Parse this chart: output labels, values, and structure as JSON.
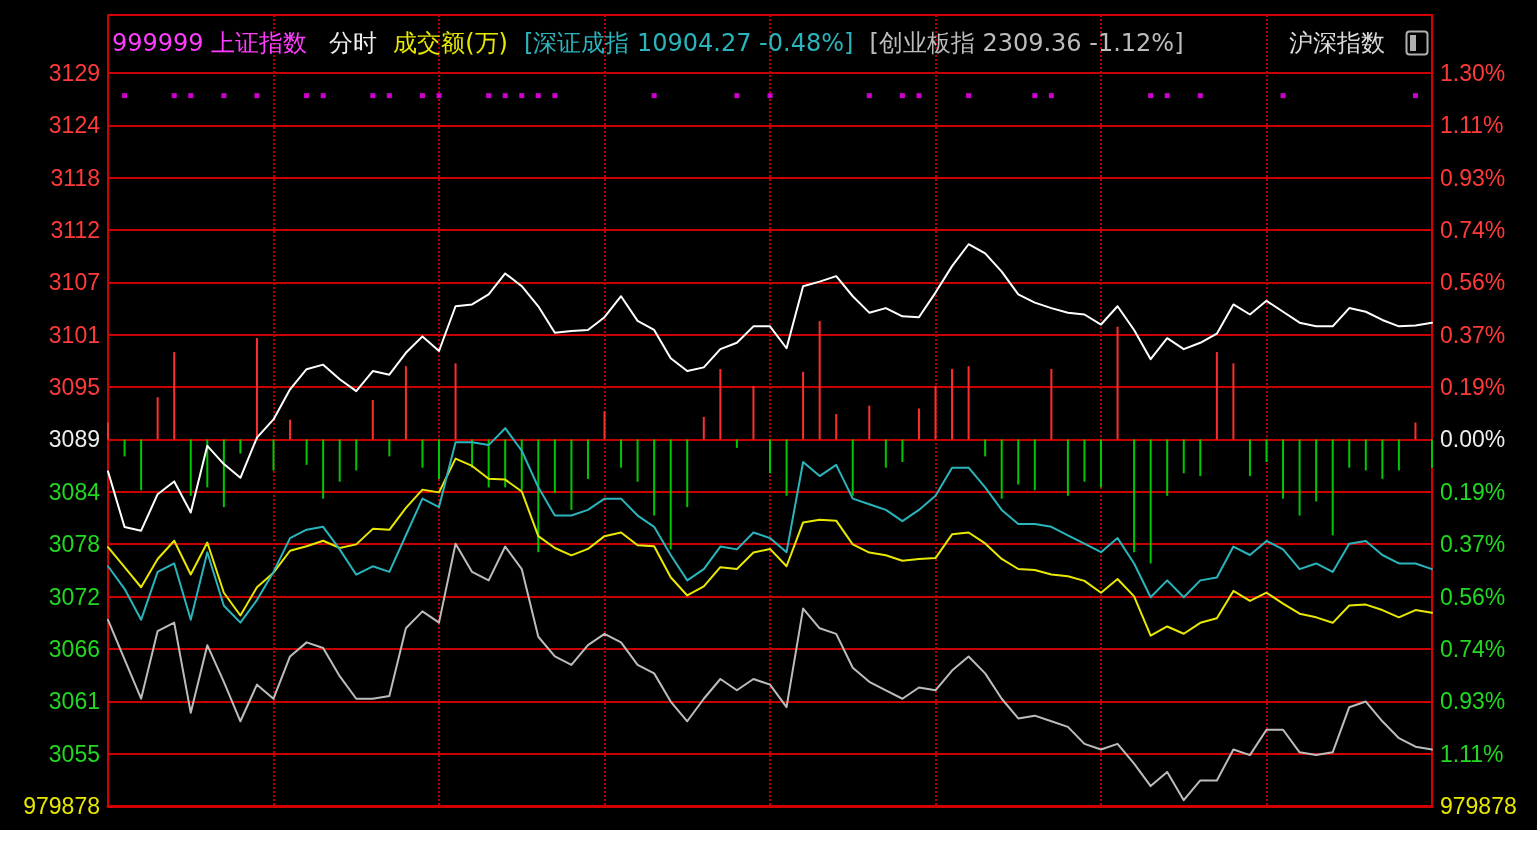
{
  "chart_data": {
    "type": "line",
    "title": "999999 上证指数",
    "annotations": [
      "分时",
      "成交额(万)",
      "沪深指数",
      "979878",
      "979878"
    ],
    "categories": [
      null,
      null,
      null,
      null,
      null,
      null,
      null,
      null,
      null,
      null,
      null,
      null,
      null,
      null,
      null,
      null,
      null,
      null,
      null,
      null,
      null,
      null,
      null,
      null,
      null,
      null,
      null,
      null,
      null,
      null,
      null,
      null,
      null,
      null,
      null,
      null,
      null,
      null,
      null,
      null,
      null,
      null,
      null,
      null,
      null,
      null,
      null,
      null,
      null,
      null,
      null,
      null,
      null,
      null,
      null,
      null,
      null,
      null,
      null,
      null,
      null,
      null,
      null,
      null,
      null,
      null,
      null,
      null,
      null,
      null,
      null,
      null,
      null,
      null,
      null,
      null,
      null,
      null,
      null,
      null,
      null
    ],
    "ylim": [
      3049.12,
      3135.83
    ],
    "yticks": [
      {
        "value": 3054.86,
        "label": "3055"
      },
      {
        "value": 3060.6,
        "label": "3061"
      },
      {
        "value": 3066.34,
        "label": "3066"
      },
      {
        "value": 3072.08,
        "label": "3072"
      },
      {
        "value": 3077.82,
        "label": "3078"
      },
      {
        "value": 3083.56,
        "label": "3084"
      },
      {
        "value": 3089.3,
        "label": "3089"
      },
      {
        "value": 3095.04,
        "label": "3095"
      },
      {
        "value": 3100.78,
        "label": "3101"
      },
      {
        "value": 3106.52,
        "label": "3107"
      },
      {
        "value": 3112.26,
        "label": "3112"
      },
      {
        "value": 3118.0,
        "label": "3118"
      },
      {
        "value": 3123.74,
        "label": "3124"
      },
      {
        "value": 3129.48,
        "label": "3129"
      }
    ],
    "y2lim": [
      -1.3006,
      1.5061
    ],
    "y2ticks": [
      {
        "value": -1.1148,
        "label": "1.11%"
      },
      {
        "value": -0.929,
        "label": "0.93%"
      },
      {
        "value": -0.7432,
        "label": "0.74%"
      },
      {
        "value": -0.5574,
        "label": "0.56%"
      },
      {
        "value": -0.3716,
        "label": "0.37%"
      },
      {
        "value": -0.1858,
        "label": "0.19%"
      },
      {
        "value": 0,
        "label": "0.00%"
      },
      {
        "value": 0.1858,
        "label": "0.19%"
      },
      {
        "value": 0.3716,
        "label": "0.37%"
      },
      {
        "value": 0.5574,
        "label": "0.56%"
      },
      {
        "value": 0.7432,
        "label": "0.74%"
      },
      {
        "value": 0.929,
        "label": "0.93%"
      },
      {
        "value": 1.1148,
        "label": "1.11%"
      },
      {
        "value": 1.3006,
        "label": "1.30%"
      }
    ],
    "grid": true,
    "legend": "top",
    "marker": "none",
    "series": [
      {
        "type": "bar",
        "axis": "y2",
        "colors": [
          "#ff2e2e",
          "#00c800",
          "#00c800",
          "#ff2e2e",
          "#ff2e2e",
          "#00c800",
          "#00c800",
          "#00c800",
          "#00c800",
          "#ff2e2e",
          "#00c800",
          "#ff2e2e",
          "#00c800",
          "#00c800",
          "#00c800",
          "#00c800",
          "#ff2e2e",
          "#00c800",
          "#ff2e2e",
          "#00c800",
          "#00c800",
          "#ff2e2e",
          "#00c800",
          "#00c800",
          "#00c800",
          "#00c800",
          "#00c800",
          "#00c800",
          "#00c800",
          "#00c800",
          "#ff2e2e",
          "#00c800",
          "#00c800",
          "#00c800",
          "#00c800",
          "#00c800",
          "#ff2e2e",
          "#ff2e2e",
          "#00c800",
          "#ff2e2e",
          "#00c800",
          "#00c800",
          "#ff2e2e",
          "#ff2e2e",
          "#ff2e2e",
          "#00c800",
          "#ff2e2e",
          "#00c800",
          "#00c800",
          "#ff2e2e",
          "#ff2e2e",
          "#ff2e2e",
          "#ff2e2e",
          "#00c800",
          "#00c800",
          "#00c800",
          "#00c800",
          "#ff2e2e",
          "#00c800",
          "#00c800",
          "#00c800",
          "#ff2e2e",
          "#00c800",
          "#00c800",
          "#00c800",
          "#00c800",
          "#00c800",
          "#ff2e2e",
          "#ff2e2e",
          "#00c800",
          "#00c800",
          "#00c800",
          "#00c800",
          "#00c800",
          "#00c800",
          "#00c800",
          "#00c800",
          "#00c800",
          "#00c800",
          "#ff2e2e",
          "#00c800"
        ],
        "values": [
          0.06,
          -0.06,
          -0.18,
          0.15,
          0.31,
          -0.2,
          -0.17,
          -0.24,
          -0.05,
          0.36,
          -0.11,
          0.07,
          -0.09,
          -0.21,
          -0.15,
          -0.11,
          0.14,
          -0.06,
          0.26,
          -0.1,
          -0.14,
          0.27,
          -0.1,
          -0.17,
          -0.17,
          -0.18,
          -0.4,
          -0.19,
          -0.25,
          -0.14,
          0.1,
          -0.1,
          -0.15,
          -0.27,
          -0.39,
          -0.24,
          0.08,
          0.25,
          -0.03,
          0.19,
          -0.12,
          -0.2,
          0.24,
          0.42,
          0.09,
          -0.2,
          0.12,
          -0.1,
          -0.08,
          0.11,
          0.19,
          0.25,
          0.26,
          -0.06,
          -0.21,
          -0.16,
          -0.18,
          0.25,
          -0.2,
          -0.15,
          -0.17,
          0.4,
          -0.4,
          -0.44,
          -0.2,
          -0.12,
          -0.13,
          0.31,
          0.27,
          -0.13,
          -0.08,
          -0.21,
          -0.27,
          -0.22,
          -0.34,
          -0.1,
          -0.11,
          -0.14,
          -0.11,
          0.06,
          -0.1
        ]
      },
      {
        "color": "#ffffff",
        "values": [
          3085.8,
          3079.7,
          3079.3,
          3083.3,
          3084.7,
          3081.3,
          3088.6,
          3086.6,
          3085.1,
          3089.5,
          3091.5,
          3094.8,
          3097.0,
          3097.5,
          3095.9,
          3094.6,
          3096.8,
          3096.4,
          3098.8,
          3100.6,
          3099.0,
          3103.9,
          3104.1,
          3105.2,
          3107.5,
          3106.1,
          3103.9,
          3101.0,
          3101.2,
          3101.3,
          3102.7,
          3105.0,
          3102.3,
          3101.3,
          3098.2,
          3096.8,
          3097.2,
          3099.2,
          3099.9,
          3101.7,
          3101.7,
          3099.3,
          3106.1,
          3106.6,
          3107.2,
          3105.0,
          3103.2,
          3103.7,
          3102.8,
          3102.7,
          3105.4,
          3108.3,
          3110.7,
          3109.7,
          3107.7,
          3105.2,
          3104.3,
          3103.7,
          3103.2,
          3103.0,
          3101.9,
          3103.9,
          3101.3,
          3098.1,
          3100.4,
          3099.2,
          3099.9,
          3100.9,
          3104.1,
          3103.0,
          3104.5,
          3103.3,
          3102.1,
          3101.7,
          3101.7,
          3103.7,
          3103.3,
          3102.4,
          3101.7,
          3101.8,
          3102.1
        ]
      },
      {
        "color": "#e8e800",
        "values": [
          3077.5,
          3075.3,
          3073.1,
          3076.2,
          3078.2,
          3074.5,
          3078.0,
          3072.5,
          3070.0,
          3073.1,
          3074.7,
          3077.1,
          3077.6,
          3078.2,
          3077.4,
          3077.8,
          3079.5,
          3079.4,
          3081.8,
          3083.8,
          3083.5,
          3087.2,
          3086.4,
          3085.0,
          3084.9,
          3083.6,
          3078.7,
          3077.4,
          3076.6,
          3077.3,
          3078.7,
          3079.1,
          3077.7,
          3077.6,
          3074.2,
          3072.2,
          3073.2,
          3075.3,
          3075.1,
          3076.9,
          3077.3,
          3075.4,
          3080.2,
          3080.5,
          3080.4,
          3077.8,
          3076.9,
          3076.6,
          3076.0,
          3076.2,
          3076.3,
          3078.9,
          3079.1,
          3077.9,
          3076.2,
          3075.1,
          3075.0,
          3074.5,
          3074.3,
          3073.8,
          3072.5,
          3074.0,
          3072.1,
          3067.8,
          3068.8,
          3068.0,
          3069.2,
          3069.7,
          3072.7,
          3071.6,
          3072.5,
          3071.3,
          3070.2,
          3069.8,
          3069.2,
          3071.1,
          3071.2,
          3070.6,
          3069.8,
          3070.6,
          3070.3
        ]
      },
      {
        "name": "[深证成指 10904.27 -0.48%]",
        "color": "#2ab4bc",
        "axis": "y2",
        "values": [
          -0.45,
          -0.53,
          -0.64,
          -0.47,
          -0.44,
          -0.64,
          -0.4,
          -0.59,
          -0.65,
          -0.57,
          -0.47,
          -0.35,
          -0.32,
          -0.31,
          -0.39,
          -0.48,
          -0.45,
          -0.47,
          -0.34,
          -0.21,
          -0.24,
          -0.01,
          -0.01,
          -0.02,
          0.04,
          -0.04,
          -0.17,
          -0.27,
          -0.27,
          -0.25,
          -0.21,
          -0.21,
          -0.27,
          -0.31,
          -0.41,
          -0.5,
          -0.46,
          -0.38,
          -0.39,
          -0.33,
          -0.35,
          -0.4,
          -0.08,
          -0.13,
          -0.09,
          -0.21,
          -0.23,
          -0.25,
          -0.29,
          -0.25,
          -0.2,
          -0.1,
          -0.1,
          -0.17,
          -0.25,
          -0.3,
          -0.3,
          -0.31,
          -0.34,
          -0.37,
          -0.4,
          -0.35,
          -0.44,
          -0.56,
          -0.5,
          -0.56,
          -0.5,
          -0.49,
          -0.38,
          -0.41,
          -0.36,
          -0.39,
          -0.46,
          -0.44,
          -0.47,
          -0.37,
          -0.36,
          -0.41,
          -0.44,
          -0.44,
          -0.46
        ]
      },
      {
        "name": "[创业板指 2309.36 -1.12%]",
        "color": "#bcbcbc",
        "axis": "y2",
        "values": [
          -0.64,
          -0.78,
          -0.92,
          -0.68,
          -0.65,
          -0.97,
          -0.73,
          -0.86,
          -1.0,
          -0.87,
          -0.92,
          -0.77,
          -0.72,
          -0.74,
          -0.84,
          -0.92,
          -0.92,
          -0.91,
          -0.67,
          -0.61,
          -0.65,
          -0.37,
          -0.47,
          -0.5,
          -0.38,
          -0.46,
          -0.7,
          -0.77,
          -0.8,
          -0.73,
          -0.69,
          -0.72,
          -0.8,
          -0.83,
          -0.93,
          -1.0,
          -0.92,
          -0.85,
          -0.89,
          -0.85,
          -0.87,
          -0.95,
          -0.6,
          -0.67,
          -0.69,
          -0.81,
          -0.86,
          -0.89,
          -0.92,
          -0.88,
          -0.89,
          -0.82,
          -0.77,
          -0.83,
          -0.92,
          -0.99,
          -0.98,
          -1.0,
          -1.02,
          -1.08,
          -1.1,
          -1.08,
          -1.15,
          -1.23,
          -1.18,
          -1.28,
          -1.21,
          -1.21,
          -1.1,
          -1.12,
          -1.03,
          -1.03,
          -1.11,
          -1.12,
          -1.11,
          -0.95,
          -0.93,
          -1.0,
          -1.06,
          -1.09,
          -1.1
        ]
      },
      {
        "type": "scatter",
        "color": "#ff00ff",
        "axis": "y2",
        "marker": "square",
        "values": [
          null,
          1.22,
          null,
          null,
          1.22,
          1.22,
          null,
          1.22,
          null,
          1.22,
          null,
          null,
          1.22,
          1.22,
          null,
          null,
          1.22,
          1.22,
          null,
          1.22,
          1.22,
          null,
          null,
          1.22,
          1.22,
          1.22,
          1.22,
          1.22,
          null,
          null,
          null,
          null,
          null,
          1.22,
          null,
          null,
          null,
          null,
          1.22,
          null,
          1.22,
          null,
          null,
          null,
          null,
          null,
          1.22,
          null,
          1.22,
          1.22,
          null,
          null,
          1.22,
          null,
          null,
          null,
          1.22,
          1.22,
          null,
          null,
          null,
          null,
          null,
          1.22,
          1.22,
          null,
          1.22,
          null,
          null,
          null,
          null,
          1.22,
          null,
          null,
          null,
          null,
          null,
          null,
          null,
          1.22,
          null
        ]
      }
    ]
  }
}
